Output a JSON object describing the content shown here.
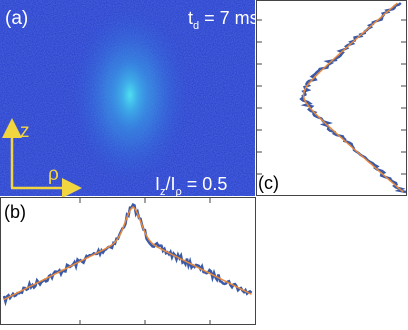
{
  "panels": {
    "a": {
      "label": "(a)",
      "time": {
        "main": "t",
        "sub": "d",
        "rest": " = 7 ms"
      },
      "ratio": {
        "p1": "I",
        "s1": "z",
        "p2": "/I",
        "s2": "ρ",
        "rest": " = 0.5"
      },
      "axis_z": "z",
      "axis_rho": "ρ"
    },
    "b": {
      "label": "(b)"
    },
    "c": {
      "label": "(c)"
    }
  }
}
